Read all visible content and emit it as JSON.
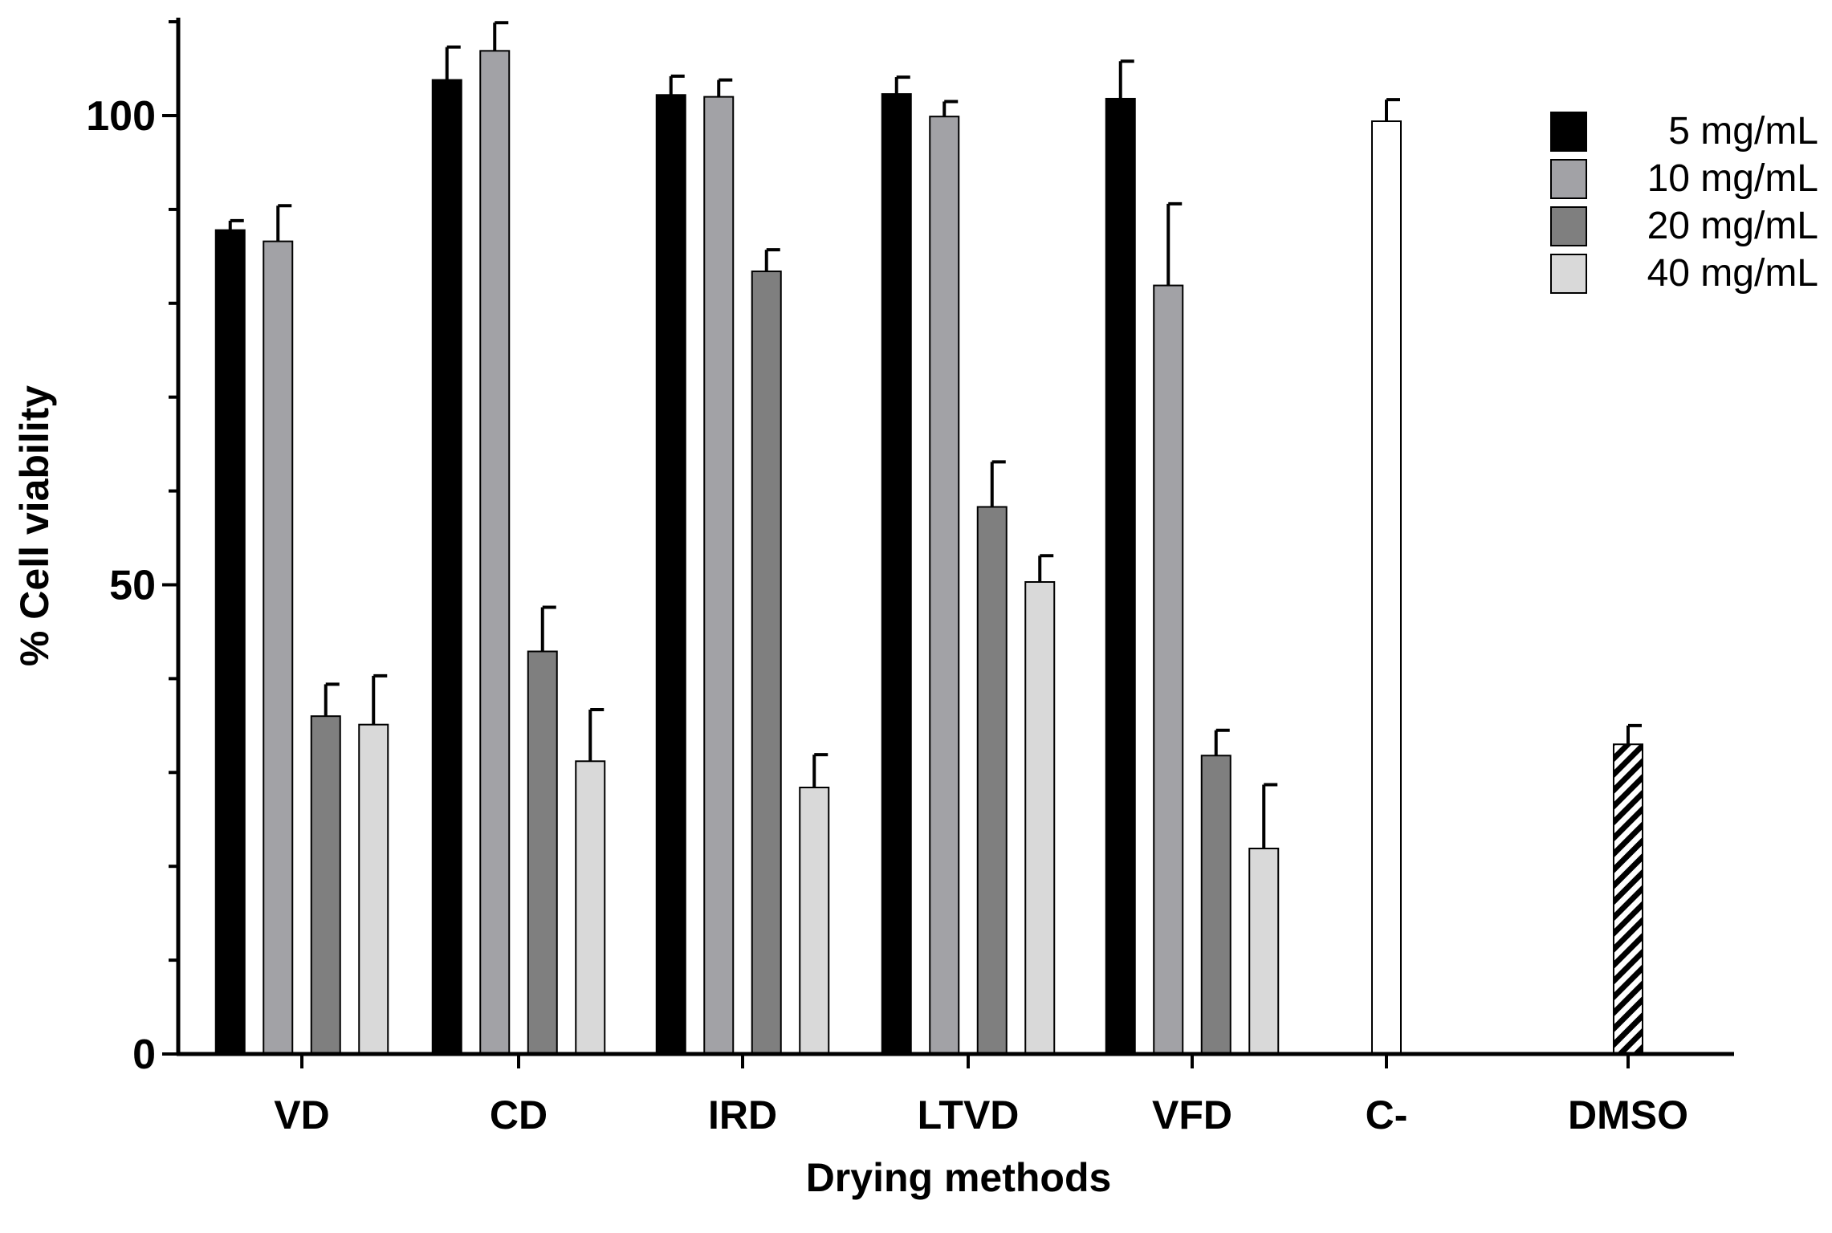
{
  "chart_data": {
    "type": "bar",
    "title": "",
    "xlabel": "Drying methods",
    "ylabel": "% Cell viability",
    "ylim": [
      0,
      110
    ],
    "y_ticks_major": [
      0,
      50,
      100
    ],
    "y_ticks_minor_step": 10,
    "grid": false,
    "legend_position": "top-right",
    "categories": [
      "VD",
      "CD",
      "IRD",
      "LTVD",
      "VFD",
      "C-",
      "DMSO"
    ],
    "series": [
      {
        "name": "5 mg/mL",
        "color": "#000000",
        "values": [
          87.8,
          103.8,
          102.2,
          102.3,
          101.8,
          null,
          null
        ],
        "errors": [
          1.0,
          3.5,
          2.0,
          1.8,
          4.0,
          null,
          null
        ]
      },
      {
        "name": "10 mg/mL",
        "color": "#a2a2a6",
        "values": [
          86.6,
          106.9,
          102.0,
          99.9,
          81.9,
          null,
          null
        ],
        "errors": [
          3.8,
          3.0,
          1.8,
          1.6,
          8.7,
          null,
          null
        ]
      },
      {
        "name": "20 mg/mL",
        "color": "#7f7f7f",
        "values": [
          36.0,
          42.9,
          83.4,
          58.3,
          31.8,
          null,
          null
        ],
        "errors": [
          3.4,
          4.7,
          2.3,
          4.8,
          2.7,
          null,
          null
        ]
      },
      {
        "name": "40 mg/mL",
        "color": "#d9d9d9",
        "values": [
          35.1,
          31.2,
          28.4,
          50.3,
          21.9,
          null,
          null
        ],
        "errors": [
          5.2,
          5.5,
          3.5,
          2.8,
          6.8,
          null,
          null
        ]
      }
    ],
    "single_bars": [
      {
        "category": "C-",
        "name": "C-",
        "value": 99.4,
        "error": 2.3,
        "fill": "#ffffff",
        "pattern": "none"
      },
      {
        "category": "DMSO",
        "name": "DMSO",
        "value": 33.0,
        "error": 2.0,
        "fill": "#ffffff",
        "pattern": "diagonal-hatch"
      }
    ]
  }
}
